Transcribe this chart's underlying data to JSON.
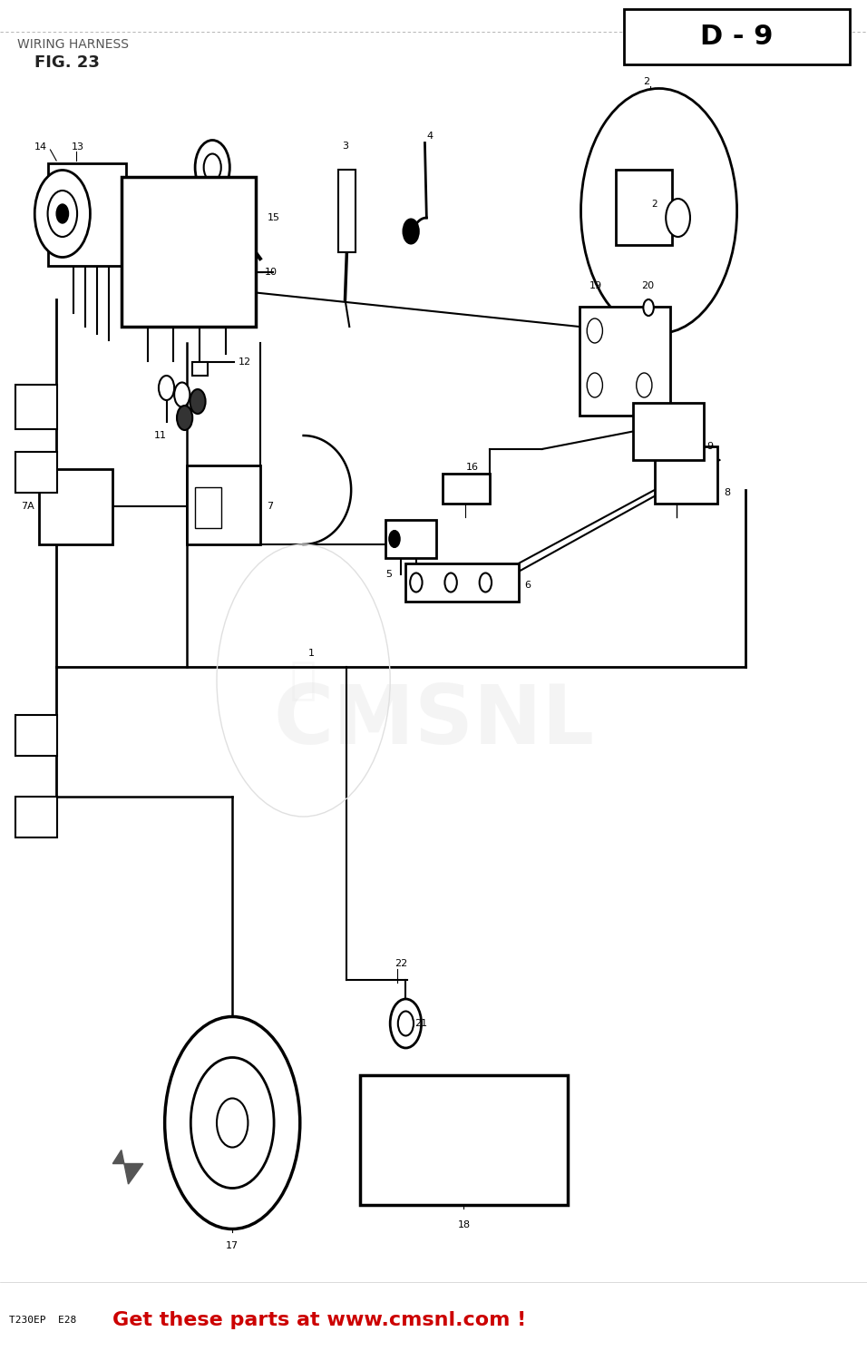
{
  "title_line1": "WIRING HARNESS",
  "title_line2": "FIG. 23",
  "fig_code": "D - 9",
  "footer_code": "T230EP  E28",
  "footer_text": "Get these parts at www.cmsnl.com !",
  "footer_text_color": "#cc0000",
  "footer_code_color": "#000000",
  "bg_color": "#ffffff",
  "diagram_color": "#000000",
  "watermark_color": "#d0d0d0",
  "border_color": "#000000",
  "title_color": "#555555",
  "fig_label_color": "#000000"
}
